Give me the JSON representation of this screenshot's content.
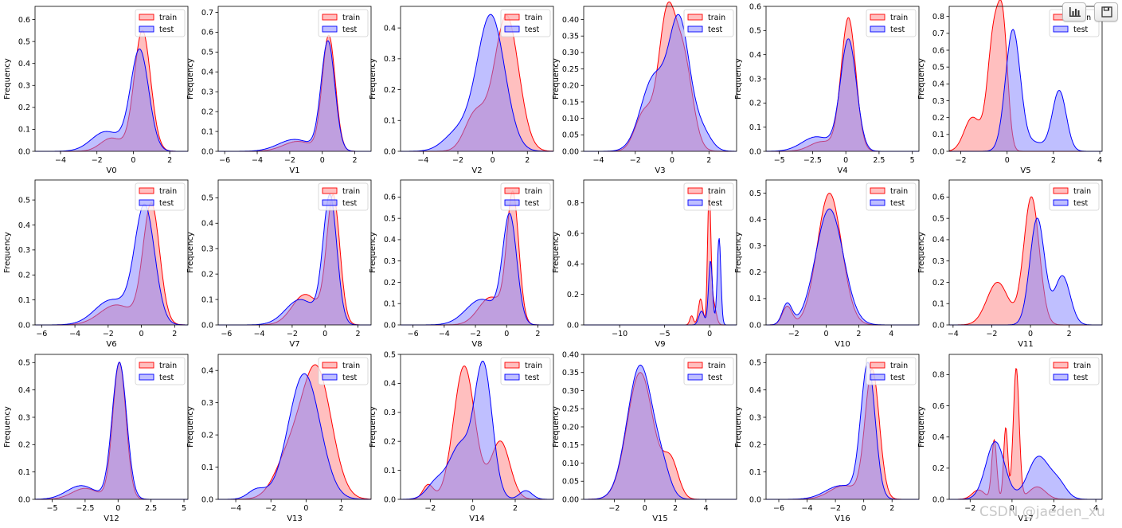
{
  "toolbar": {
    "chart_button": "bar-chart-icon",
    "save_button": "save-icon"
  },
  "watermark": "CSDN @jaeden_xu",
  "legend": {
    "train_label": "train",
    "test_label": "test"
  },
  "colors": {
    "train": "#ff0000",
    "test": "#0000ff"
  },
  "chart_data": [
    {
      "type": "area",
      "xlabel": "V0",
      "ylabel": "Frequency",
      "xlim": [
        -5.4,
        3.0
      ],
      "xticks": [
        -4,
        -2,
        0,
        2
      ],
      "ylim": [
        0,
        0.66
      ],
      "yticks": [
        0.0,
        0.1,
        0.2,
        0.3,
        0.4,
        0.5,
        0.6
      ],
      "series": [
        {
          "name": "train",
          "peaks": [
            [
              0.5,
              0.55,
              0.45
            ],
            [
              -1.2,
              0.06,
              0.6
            ]
          ]
        },
        {
          "name": "test",
          "peaks": [
            [
              0.35,
              0.46,
              0.5
            ],
            [
              -1.5,
              0.09,
              0.8
            ]
          ]
        }
      ]
    },
    {
      "type": "area",
      "xlabel": "V1",
      "ylabel": "Frequency",
      "xlim": [
        -6.4,
        3.0
      ],
      "xticks": [
        -6,
        -4,
        -2,
        0,
        2
      ],
      "ylim": [
        0,
        0.73
      ],
      "yticks": [
        0.0,
        0.1,
        0.2,
        0.3,
        0.4,
        0.5,
        0.6,
        0.7
      ],
      "series": [
        {
          "name": "train",
          "peaks": [
            [
              0.4,
              0.58,
              0.4
            ],
            [
              -1.5,
              0.05,
              0.9
            ]
          ]
        },
        {
          "name": "test",
          "peaks": [
            [
              0.35,
              0.55,
              0.42
            ],
            [
              -1.7,
              0.06,
              1.0
            ]
          ]
        }
      ]
    },
    {
      "type": "area",
      "xlabel": "V2",
      "ylabel": "Frequency",
      "xlim": [
        -5.3,
        3.5
      ],
      "xticks": [
        -4,
        -2,
        0,
        2
      ],
      "ylim": [
        0,
        0.47
      ],
      "yticks": [
        0.0,
        0.1,
        0.2,
        0.3,
        0.4
      ],
      "series": [
        {
          "name": "train",
          "peaks": [
            [
              0.8,
              0.44,
              0.7
            ],
            [
              -1.0,
              0.12,
              0.6
            ]
          ]
        },
        {
          "name": "test",
          "peaks": [
            [
              -0.1,
              0.44,
              0.8
            ],
            [
              -2.0,
              0.06,
              0.8
            ]
          ]
        }
      ]
    },
    {
      "type": "area",
      "xlabel": "V3",
      "ylabel": "Frequency",
      "xlim": [
        -4.8,
        3.5
      ],
      "xticks": [
        -4,
        -2,
        0,
        2
      ],
      "ylim": [
        0,
        0.44
      ],
      "yticks": [
        0.0,
        0.05,
        0.1,
        0.15,
        0.2,
        0.25,
        0.3,
        0.35,
        0.4
      ],
      "series": [
        {
          "name": "train",
          "peaks": [
            [
              -0.3,
              0.38,
              0.45
            ],
            [
              0.6,
              0.28,
              0.5
            ],
            [
              -1.5,
              0.12,
              0.5
            ]
          ]
        },
        {
          "name": "test",
          "peaks": [
            [
              0.4,
              0.38,
              0.55
            ],
            [
              -1.0,
              0.22,
              0.7
            ],
            [
              1.6,
              0.06,
              0.5
            ]
          ]
        }
      ]
    },
    {
      "type": "area",
      "xlabel": "V4",
      "ylabel": "Frequency",
      "xlim": [
        -6.0,
        5.5
      ],
      "xticks": [
        -5.0,
        -2.5,
        0.0,
        2.5,
        5.0
      ],
      "ylim": [
        0,
        0.6
      ],
      "yticks": [
        0.0,
        0.1,
        0.2,
        0.3,
        0.4,
        0.5,
        0.6
      ],
      "series": [
        {
          "name": "train",
          "peaks": [
            [
              0.2,
              0.55,
              0.55
            ],
            [
              -1.8,
              0.04,
              0.9
            ]
          ]
        },
        {
          "name": "test",
          "peaks": [
            [
              0.2,
              0.46,
              0.6
            ],
            [
              -2.2,
              0.06,
              1.1
            ]
          ]
        }
      ]
    },
    {
      "type": "area",
      "xlabel": "V5",
      "ylabel": "Frequency",
      "xlim": [
        -2.5,
        4.1
      ],
      "xticks": [
        -2,
        0,
        2,
        4
      ],
      "ylim": [
        0,
        0.86
      ],
      "yticks": [
        0.0,
        0.1,
        0.2,
        0.3,
        0.4,
        0.5,
        0.6,
        0.7,
        0.8
      ],
      "series": [
        {
          "name": "train",
          "peaks": [
            [
              -0.55,
              0.72,
              0.28
            ],
            [
              -0.15,
              0.55,
              0.2
            ],
            [
              -1.5,
              0.2,
              0.35
            ]
          ]
        },
        {
          "name": "test",
          "peaks": [
            [
              0.25,
              0.72,
              0.32
            ],
            [
              2.25,
              0.36,
              0.3
            ],
            [
              1.2,
              0.05,
              0.4
            ]
          ]
        }
      ]
    },
    {
      "type": "area",
      "xlabel": "V6",
      "ylabel": "Frequency",
      "xlim": [
        -6.4,
        2.8
      ],
      "xticks": [
        -6,
        -4,
        -2,
        0,
        2
      ],
      "ylim": [
        0,
        0.58
      ],
      "yticks": [
        0.0,
        0.1,
        0.2,
        0.3,
        0.4,
        0.5
      ],
      "series": [
        {
          "name": "train",
          "peaks": [
            [
              0.6,
              0.48,
              0.5
            ],
            [
              -1.5,
              0.08,
              1.0
            ]
          ]
        },
        {
          "name": "test",
          "peaks": [
            [
              0.2,
              0.47,
              0.6
            ],
            [
              -1.8,
              0.1,
              1.0
            ]
          ]
        }
      ]
    },
    {
      "type": "area",
      "xlabel": "V7",
      "ylabel": "Frequency",
      "xlim": [
        -6.5,
        2.8
      ],
      "xticks": [
        -6,
        -4,
        -2,
        0,
        2
      ],
      "ylim": [
        0,
        0.57
      ],
      "yticks": [
        0.0,
        0.1,
        0.2,
        0.3,
        0.4,
        0.5
      ],
      "series": [
        {
          "name": "train",
          "peaks": [
            [
              0.5,
              0.5,
              0.4
            ],
            [
              -1.2,
              0.12,
              0.8
            ]
          ]
        },
        {
          "name": "test",
          "peaks": [
            [
              0.3,
              0.5,
              0.42
            ],
            [
              -1.5,
              0.1,
              0.9
            ]
          ]
        }
      ]
    },
    {
      "type": "area",
      "xlabel": "V8",
      "ylabel": "Frequency",
      "xlim": [
        -6.8,
        3.0
      ],
      "xticks": [
        -6,
        -4,
        -2,
        0,
        2
      ],
      "ylim": [
        0,
        0.68
      ],
      "yticks": [
        0.0,
        0.1,
        0.2,
        0.3,
        0.4,
        0.5,
        0.6
      ],
      "series": [
        {
          "name": "train",
          "peaks": [
            [
              0.4,
              0.6,
              0.38
            ],
            [
              -1.0,
              0.13,
              0.8
            ]
          ]
        },
        {
          "name": "test",
          "peaks": [
            [
              0.2,
              0.5,
              0.45
            ],
            [
              -1.6,
              0.12,
              1.0
            ]
          ]
        }
      ]
    },
    {
      "type": "area",
      "xlabel": "V9",
      "ylabel": "Frequency",
      "xlim": [
        -14.0,
        3.0
      ],
      "xticks": [
        -10,
        -5,
        0
      ],
      "ylim": [
        0,
        0.95
      ],
      "yticks": [
        0.0,
        0.2,
        0.4,
        0.6,
        0.8
      ],
      "series": [
        {
          "name": "train",
          "peaks": [
            [
              -0.05,
              0.85,
              0.18
            ],
            [
              0.4,
              0.15,
              0.3
            ],
            [
              -1.0,
              0.17,
              0.25
            ],
            [
              -2.0,
              0.06,
              0.2
            ]
          ]
        },
        {
          "name": "test",
          "peaks": [
            [
              0.1,
              0.42,
              0.22
            ],
            [
              1.05,
              0.57,
              0.2
            ],
            [
              -0.9,
              0.09,
              0.3
            ]
          ]
        }
      ]
    },
    {
      "type": "area",
      "xlabel": "V10",
      "ylabel": "Frequency",
      "xlim": [
        -3.7,
        5.7
      ],
      "xticks": [
        -2,
        0,
        2,
        4
      ],
      "ylim": [
        0,
        0.55
      ],
      "yticks": [
        0.0,
        0.1,
        0.2,
        0.3,
        0.4,
        0.5
      ],
      "series": [
        {
          "name": "train",
          "peaks": [
            [
              0.2,
              0.5,
              0.75
            ],
            [
              -2.4,
              0.07,
              0.3
            ]
          ]
        },
        {
          "name": "test",
          "peaks": [
            [
              0.2,
              0.44,
              0.85
            ],
            [
              -2.4,
              0.08,
              0.3
            ]
          ]
        }
      ]
    },
    {
      "type": "area",
      "xlabel": "V11",
      "ylabel": "Frequency",
      "xlim": [
        -4.2,
        3.7
      ],
      "xticks": [
        -4,
        -2,
        0,
        2
      ],
      "ylim": [
        0,
        0.68
      ],
      "yticks": [
        0.0,
        0.1,
        0.2,
        0.3,
        0.4,
        0.5,
        0.6
      ],
      "series": [
        {
          "name": "train",
          "peaks": [
            [
              0.05,
              0.6,
              0.4
            ],
            [
              -1.7,
              0.2,
              0.55
            ]
          ]
        },
        {
          "name": "test",
          "peaks": [
            [
              0.35,
              0.5,
              0.38
            ],
            [
              1.65,
              0.23,
              0.4
            ]
          ]
        }
      ]
    },
    {
      "type": "area",
      "xlabel": "V12",
      "ylabel": "Frequency",
      "xlim": [
        -6.3,
        5.3
      ],
      "xticks": [
        -5.0,
        -2.5,
        0.0,
        2.5,
        5.0
      ],
      "ylim": [
        0,
        0.53
      ],
      "yticks": [
        0.0,
        0.1,
        0.2,
        0.3,
        0.4,
        0.5
      ],
      "series": [
        {
          "name": "train",
          "peaks": [
            [
              0.1,
              0.5,
              0.5
            ],
            [
              -2.5,
              0.04,
              1.0
            ]
          ]
        },
        {
          "name": "test",
          "peaks": [
            [
              0.1,
              0.5,
              0.55
            ],
            [
              -2.8,
              0.05,
              1.1
            ]
          ]
        }
      ]
    },
    {
      "type": "area",
      "xlabel": "V13",
      "ylabel": "Frequency",
      "xlim": [
        -5.0,
        3.7
      ],
      "xticks": [
        -4,
        -2,
        0,
        2
      ],
      "ylim": [
        0,
        0.45
      ],
      "yticks": [
        0.0,
        0.1,
        0.2,
        0.3,
        0.4
      ],
      "series": [
        {
          "name": "train",
          "peaks": [
            [
              0.6,
              0.4,
              0.85
            ],
            [
              -1.0,
              0.12,
              0.8
            ]
          ]
        },
        {
          "name": "test",
          "peaks": [
            [
              -0.1,
              0.39,
              0.9
            ],
            [
              -2.8,
              0.03,
              0.5
            ]
          ]
        }
      ]
    },
    {
      "type": "area",
      "xlabel": "V14",
      "ylabel": "Frequency",
      "xlim": [
        -3.4,
        3.8
      ],
      "xticks": [
        -2,
        0,
        2
      ],
      "ylim": [
        0,
        0.5
      ],
      "yticks": [
        0.0,
        0.1,
        0.2,
        0.3,
        0.4,
        0.5
      ],
      "series": [
        {
          "name": "train",
          "peaks": [
            [
              -0.4,
              0.46,
              0.5
            ],
            [
              1.3,
              0.2,
              0.45
            ],
            [
              -2.1,
              0.05,
              0.25
            ]
          ]
        },
        {
          "name": "test",
          "peaks": [
            [
              0.5,
              0.46,
              0.42
            ],
            [
              -0.6,
              0.18,
              0.5
            ],
            [
              -1.7,
              0.06,
              0.45
            ],
            [
              2.5,
              0.03,
              0.3
            ]
          ]
        }
      ]
    },
    {
      "type": "area",
      "xlabel": "V15",
      "ylabel": "Frequency",
      "xlim": [
        -4.0,
        6.0
      ],
      "xticks": [
        -2,
        0,
        2,
        4
      ],
      "ylim": [
        0,
        0.4
      ],
      "yticks": [
        0.0,
        0.05,
        0.1,
        0.15,
        0.2,
        0.25,
        0.3,
        0.35,
        0.4
      ],
      "series": [
        {
          "name": "train",
          "peaks": [
            [
              -0.3,
              0.35,
              0.85
            ],
            [
              1.7,
              0.1,
              0.5
            ]
          ]
        },
        {
          "name": "test",
          "peaks": [
            [
              -0.3,
              0.37,
              0.85
            ],
            [
              1.2,
              0.05,
              0.5
            ]
          ]
        }
      ]
    },
    {
      "type": "area",
      "xlabel": "V16",
      "ylabel": "Frequency",
      "xlim": [
        -6.9,
        3.9
      ],
      "xticks": [
        -6,
        -4,
        -2,
        0,
        2
      ],
      "ylim": [
        0,
        0.53
      ],
      "yticks": [
        0.0,
        0.1,
        0.2,
        0.3,
        0.4,
        0.5
      ],
      "series": [
        {
          "name": "train",
          "peaks": [
            [
              0.6,
              0.47,
              0.5
            ],
            [
              -1.4,
              0.05,
              1.0
            ]
          ]
        },
        {
          "name": "test",
          "peaks": [
            [
              0.3,
              0.49,
              0.5
            ],
            [
              -1.6,
              0.05,
              1.1
            ]
          ]
        }
      ]
    },
    {
      "type": "area",
      "xlabel": "V17",
      "ylabel": "Frequency",
      "xlim": [
        -3.0,
        4.3
      ],
      "xticks": [
        -2,
        0,
        2,
        4
      ],
      "ylim": [
        0,
        0.93
      ],
      "yticks": [
        0.0,
        0.2,
        0.4,
        0.6,
        0.8
      ],
      "series": [
        {
          "name": "train",
          "peaks": [
            [
              0.2,
              0.84,
              0.14
            ],
            [
              -0.3,
              0.46,
              0.1
            ],
            [
              -0.85,
              0.38,
              0.12
            ],
            [
              -1.6,
              0.06,
              0.3
            ],
            [
              1.2,
              0.08,
              0.4
            ]
          ]
        },
        {
          "name": "test",
          "peaks": [
            [
              -0.8,
              0.37,
              0.45
            ],
            [
              1.25,
              0.27,
              0.5
            ],
            [
              2.2,
              0.1,
              0.4
            ]
          ]
        }
      ]
    }
  ]
}
